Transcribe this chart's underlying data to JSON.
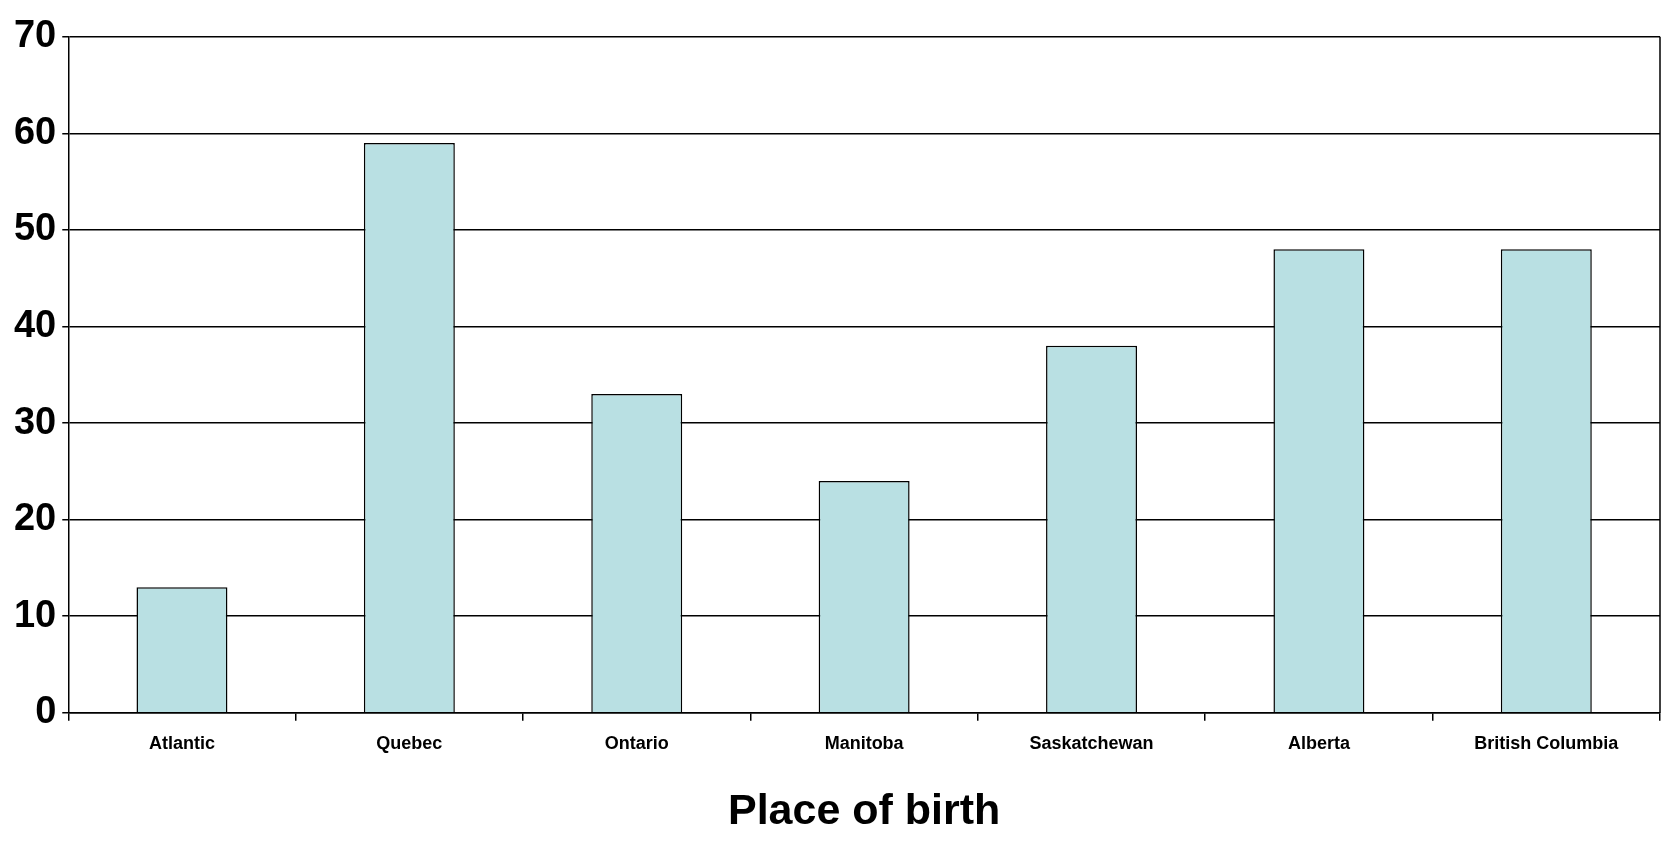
{
  "chart_data": {
    "type": "bar",
    "xlabel": "Place of birth",
    "categories": [
      "Atlantic",
      "Quebec",
      "Ontario",
      "Manitoba",
      "Saskatchewan",
      "Alberta",
      "British Columbia"
    ],
    "values": [
      13,
      59,
      33,
      24,
      38,
      48,
      48
    ],
    "color": "#b9e0e3",
    "ylim": [
      0,
      70
    ],
    "yticks": [
      0,
      10,
      20,
      30,
      40,
      50,
      60,
      70
    ],
    "grid": "y",
    "legend": false
  }
}
